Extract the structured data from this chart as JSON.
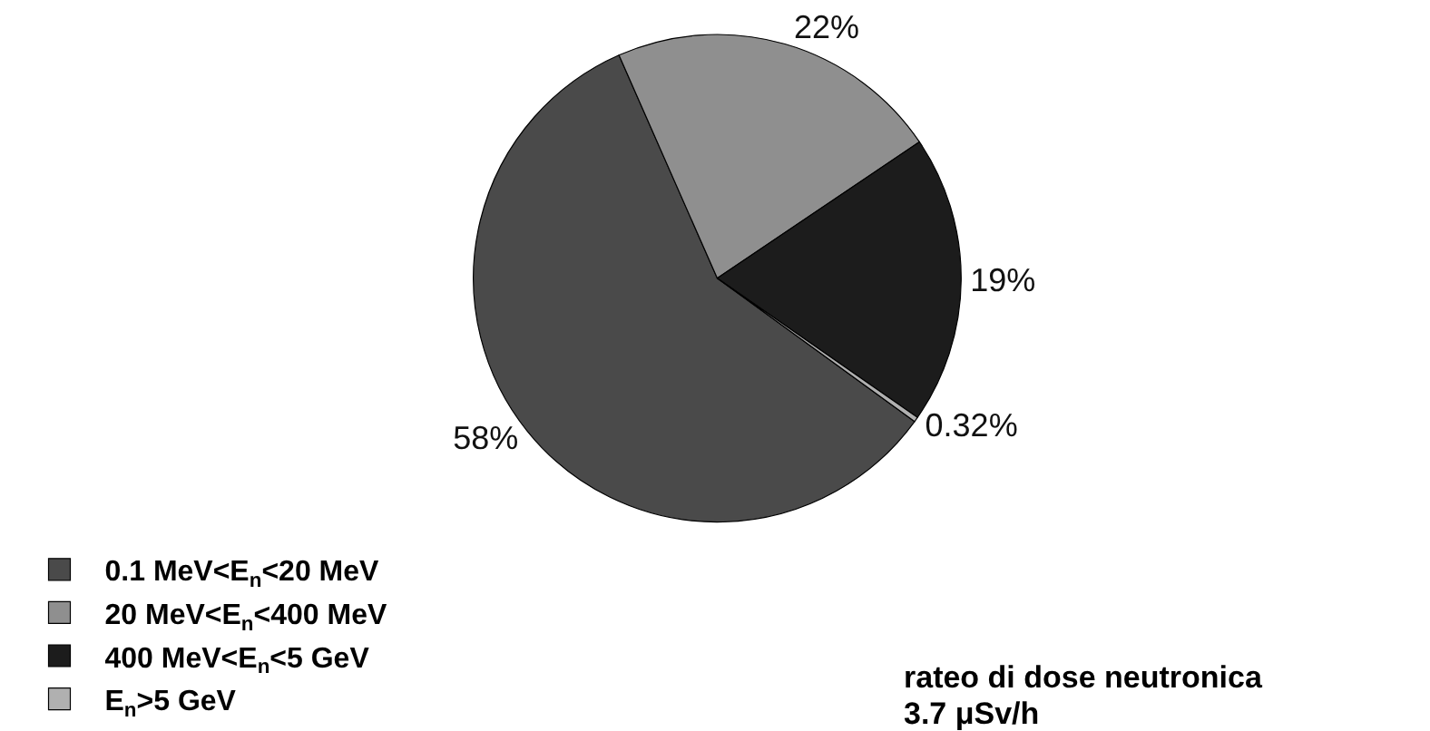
{
  "chart_data": {
    "type": "pie",
    "categories": [
      "0.1 MeV<E$_{n}$<20 MeV",
      "20 MeV<E$_{n}$<400 MeV",
      "400 MeV<E$_{n}$<5 GeV",
      "E$_{n}$>5 GeV"
    ],
    "values": [
      58,
      22,
      19,
      0.32
    ],
    "value_labels": [
      "58%",
      "22%",
      "19%",
      "0.32%"
    ],
    "colors": [
      "#4a4a4a",
      "#8f8f8f",
      "#1c1c1c",
      "#b0b0b0"
    ],
    "legend": "bottom left",
    "annotations": [
      "rateo di dose neutronica",
      "3.7 μSv/h"
    ]
  }
}
